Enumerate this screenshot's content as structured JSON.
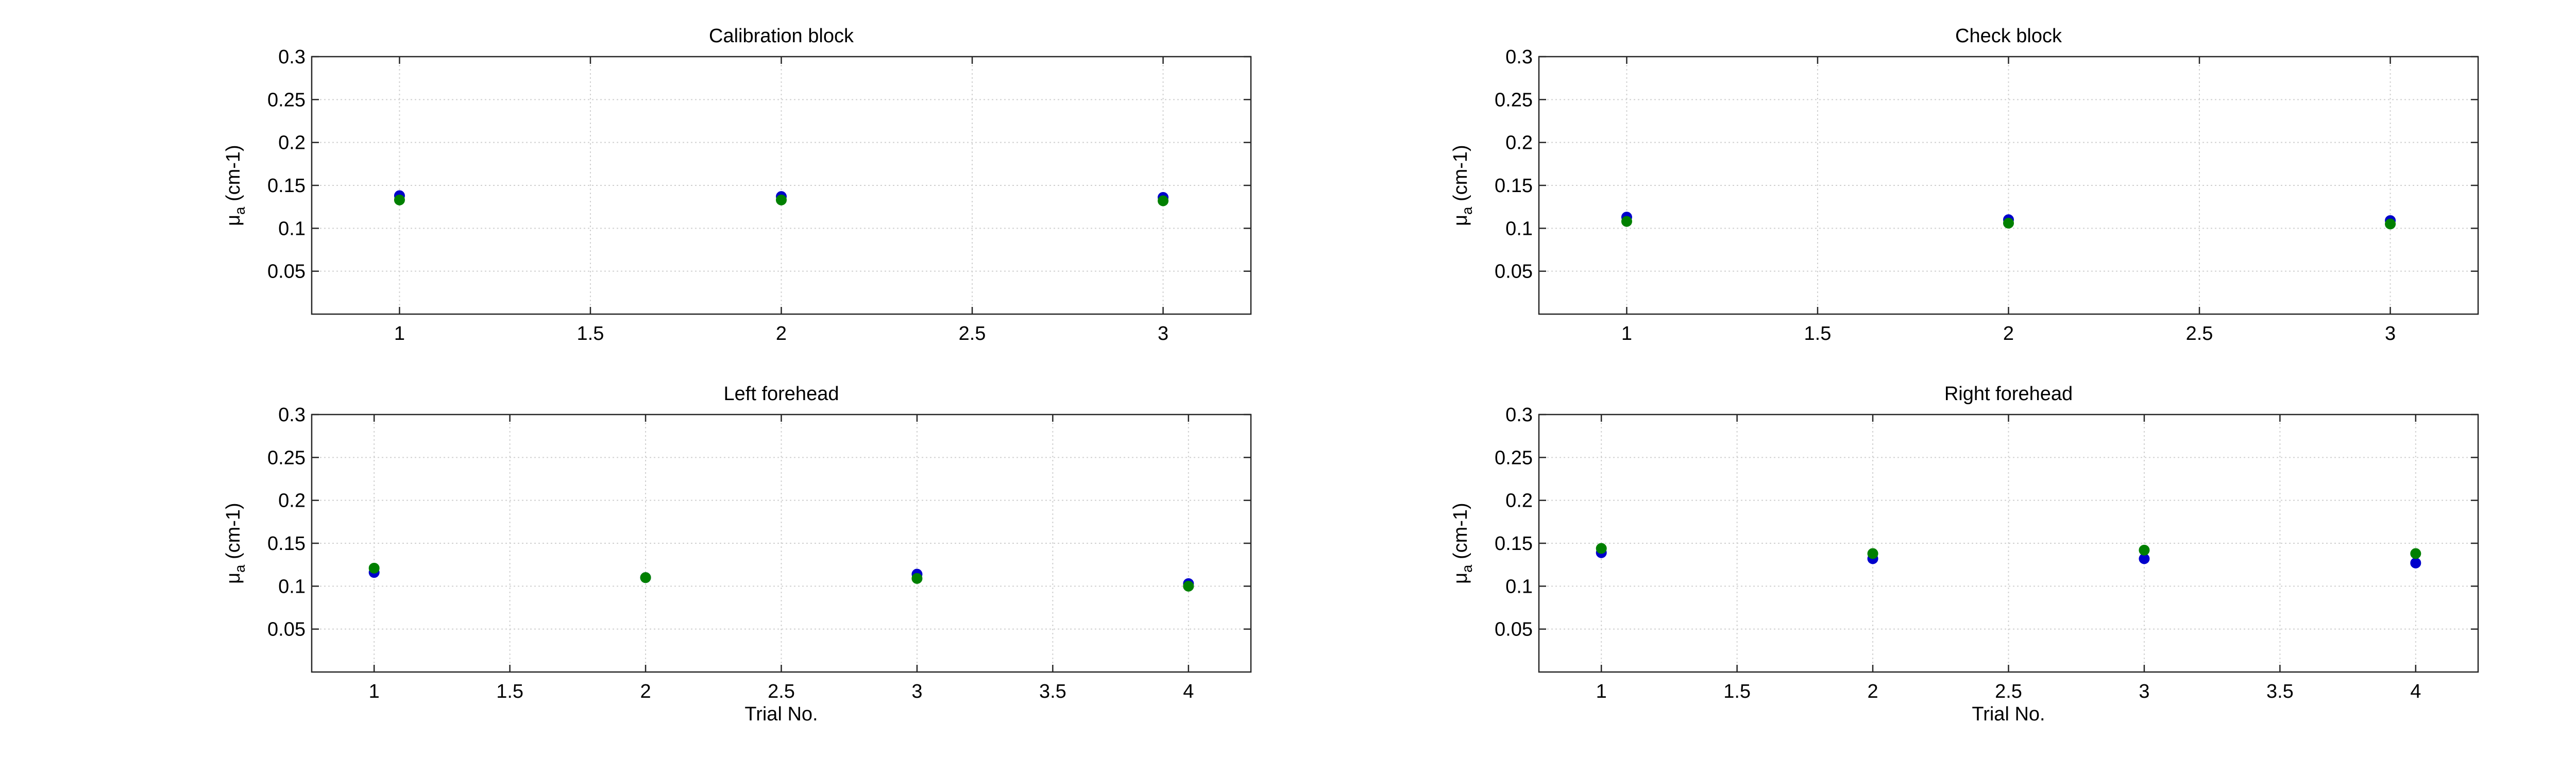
{
  "chart_data": [
    {
      "type": "scatter",
      "title": "Calibration block",
      "ylabel": "μa (cm-1)",
      "xlabel": "",
      "xlim": [
        0.77,
        3.23
      ],
      "ylim": [
        0,
        0.3
      ],
      "xticks": [
        1,
        1.5,
        2,
        2.5,
        3
      ],
      "yticks": [
        0.05,
        0.1,
        0.15,
        0.2,
        0.25,
        0.3
      ],
      "grid": true,
      "series": [
        {
          "color": "#0000cc",
          "x": [
            1,
            2,
            3
          ],
          "y": [
            0.138,
            0.137,
            0.136
          ]
        },
        {
          "color": "#008000",
          "x": [
            1,
            2,
            3
          ],
          "y": [
            0.133,
            0.133,
            0.132
          ]
        }
      ]
    },
    {
      "type": "scatter",
      "title": "Check block",
      "ylabel": "μa (cm-1)",
      "xlabel": "",
      "xlim": [
        0.77,
        3.23
      ],
      "ylim": [
        0,
        0.3
      ],
      "xticks": [
        1,
        1.5,
        2,
        2.5,
        3
      ],
      "yticks": [
        0.05,
        0.1,
        0.15,
        0.2,
        0.25,
        0.3
      ],
      "grid": true,
      "series": [
        {
          "color": "#0000cc",
          "x": [
            1,
            2,
            3
          ],
          "y": [
            0.113,
            0.11,
            0.109
          ]
        },
        {
          "color": "#008000",
          "x": [
            1,
            2,
            3
          ],
          "y": [
            0.108,
            0.106,
            0.105
          ]
        }
      ]
    },
    {
      "type": "scatter",
      "title": "Left forehead",
      "ylabel": "μa (cm-1)",
      "xlabel": "Trial No.",
      "xlim": [
        0.77,
        4.23
      ],
      "ylim": [
        0,
        0.3
      ],
      "xticks": [
        1,
        1.5,
        2,
        2.5,
        3,
        3.5,
        4
      ],
      "yticks": [
        0.05,
        0.1,
        0.15,
        0.2,
        0.25,
        0.3
      ],
      "grid": true,
      "series": [
        {
          "color": "#0000cc",
          "x": [
            1,
            2,
            3,
            4
          ],
          "y": [
            0.116,
            0.11,
            0.114,
            0.103
          ]
        },
        {
          "color": "#008000",
          "x": [
            1,
            2,
            3,
            4
          ],
          "y": [
            0.121,
            0.11,
            0.109,
            0.1
          ]
        }
      ]
    },
    {
      "type": "scatter",
      "title": "Right forehead",
      "ylabel": "μa (cm-1)",
      "xlabel": "Trial No.",
      "xlim": [
        0.77,
        4.23
      ],
      "ylim": [
        0,
        0.3
      ],
      "xticks": [
        1,
        1.5,
        2,
        2.5,
        3,
        3.5,
        4
      ],
      "yticks": [
        0.05,
        0.1,
        0.15,
        0.2,
        0.25,
        0.3
      ],
      "grid": true,
      "series": [
        {
          "color": "#0000cc",
          "x": [
            1,
            2,
            3,
            4
          ],
          "y": [
            0.139,
            0.132,
            0.132,
            0.127
          ]
        },
        {
          "color": "#008000",
          "x": [
            1,
            2,
            3,
            4
          ],
          "y": [
            0.144,
            0.138,
            0.142,
            0.138
          ]
        }
      ]
    }
  ]
}
